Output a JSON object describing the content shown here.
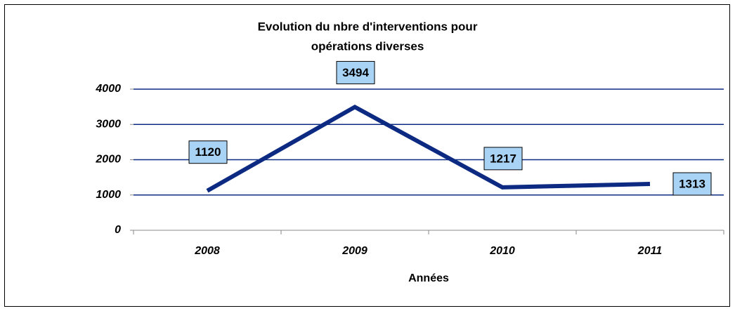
{
  "chart_data": {
    "type": "line",
    "title": [
      "Evolution du nbre d'interventions pour",
      "opérations diverses"
    ],
    "x_label": "Années",
    "categories": [
      "2008",
      "2009",
      "2010",
      "2011"
    ],
    "values": [
      1120,
      3494,
      1217,
      1313
    ],
    "color": "#0d2a82",
    "grid_color": "#0d2a82",
    "label_fill": "#a9d3f5",
    "ylim": [
      0,
      4000
    ],
    "yticks": [
      0,
      1000,
      2000,
      3000,
      4000
    ],
    "grid": true
  }
}
